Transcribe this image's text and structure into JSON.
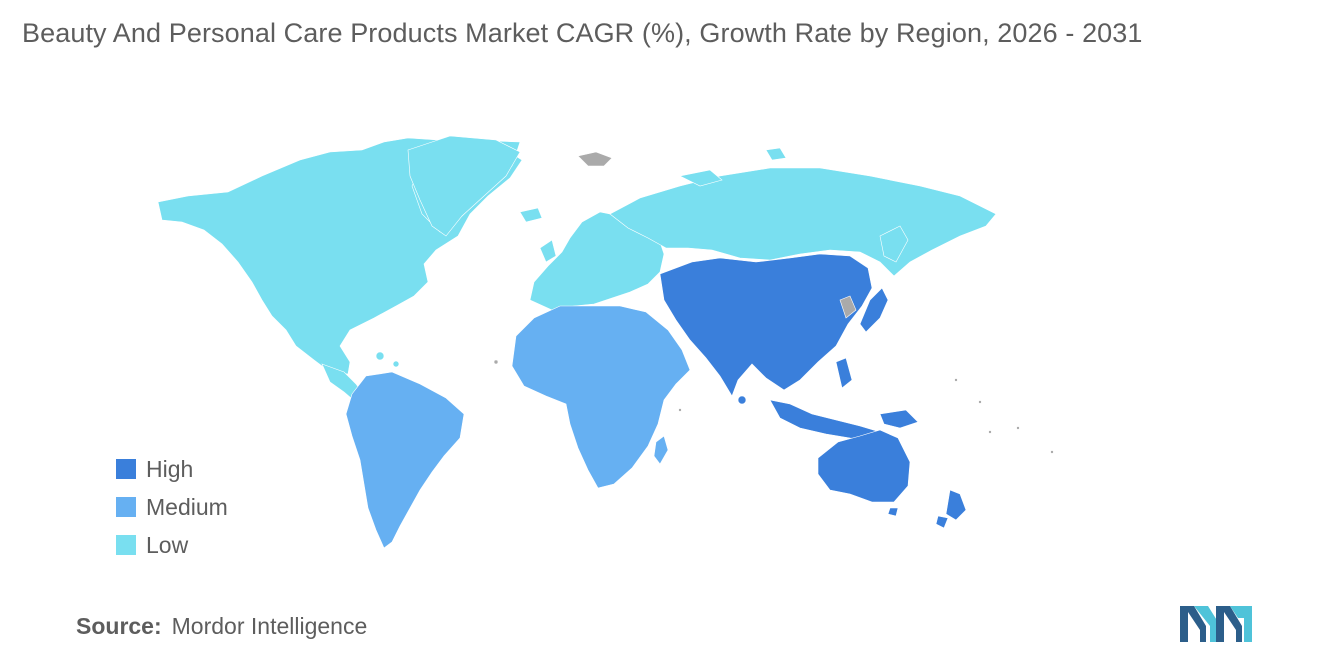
{
  "title": "Beauty And Personal Care Products Market CAGR (%), Growth Rate by Region, 2026 - 2031",
  "colors": {
    "high": "#3a7fdb",
    "medium": "#66b0f2",
    "low": "#79dff0",
    "no_data": "#aaaaaa",
    "text": "#5d5d5d",
    "logo_dark": "#2c5e8a",
    "logo_light": "#4fc3d9"
  },
  "legend": [
    {
      "label": "High",
      "color_key": "high"
    },
    {
      "label": "Medium",
      "color_key": "medium"
    },
    {
      "label": "Low",
      "color_key": "low"
    }
  ],
  "regions": [
    {
      "name": "North America",
      "level": "low"
    },
    {
      "name": "Europe",
      "level": "low"
    },
    {
      "name": "Russia",
      "level": "low"
    },
    {
      "name": "South America",
      "level": "medium"
    },
    {
      "name": "Middle East and Africa",
      "level": "medium"
    },
    {
      "name": "Asia Pacific",
      "level": "high"
    }
  ],
  "source": {
    "label": "Source:",
    "value": "Mordor Intelligence"
  }
}
